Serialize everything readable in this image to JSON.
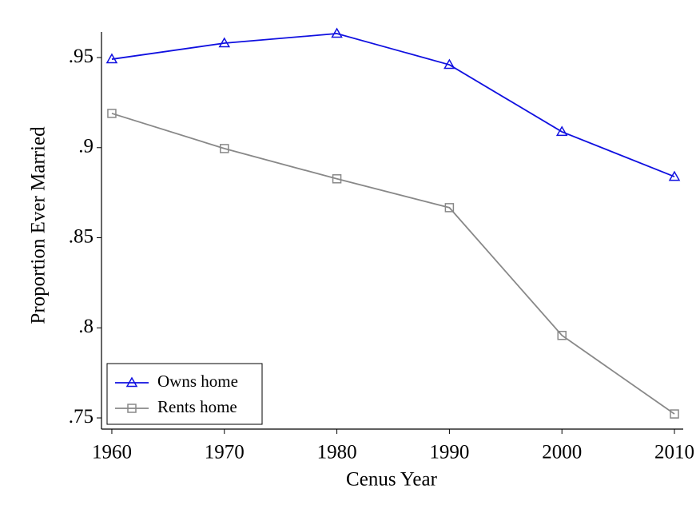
{
  "chart_data": {
    "type": "line",
    "x_label": "Cenus Year",
    "y_label": "Proportion Ever Married",
    "x": [
      1960,
      1970,
      1980,
      1990,
      2000,
      2010
    ],
    "series": [
      {
        "name": "Owns home",
        "color": "#1010e0",
        "marker": "triangle",
        "values": [
          0.9491,
          0.958,
          0.9633,
          0.946,
          0.9088,
          0.8839
        ]
      },
      {
        "name": "Rents home",
        "color": "#888888",
        "marker": "square",
        "values": [
          0.919,
          0.8995,
          0.8827,
          0.8667,
          0.7958,
          0.7522
        ]
      }
    ],
    "xlim": [
      1959.08,
      2010.78
    ],
    "ylim": [
      0.7438,
      0.9642
    ],
    "xticks": [
      1960,
      1970,
      1980,
      1990,
      2000,
      2010
    ],
    "yticks": [
      {
        "value": 0.75,
        "label": ".75"
      },
      {
        "value": 0.8,
        "label": ".8"
      },
      {
        "value": 0.85,
        "label": ".85"
      },
      {
        "value": 0.9,
        "label": ".9"
      },
      {
        "value": 0.95,
        "label": ".95"
      }
    ],
    "grid": false,
    "legend": "bottom-left"
  }
}
